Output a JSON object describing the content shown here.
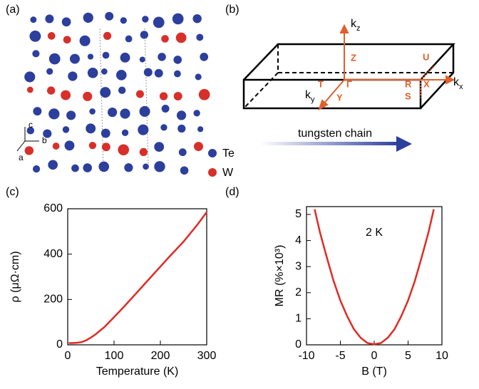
{
  "panel_labels": [
    "(a)",
    "(b)",
    "(c)",
    "(d)"
  ],
  "structure": {
    "axes": [
      "c",
      "b",
      "a"
    ],
    "legend": [
      {
        "name": "Te",
        "color": "#2c3f9c"
      },
      {
        "name": "W",
        "color": "#d7302a"
      }
    ]
  },
  "brillouin_zone": {
    "axes": [
      {
        "base": "k",
        "sub": "z"
      },
      {
        "base": "k",
        "sub": "y"
      },
      {
        "base": "k",
        "sub": "x"
      }
    ],
    "points": [
      "Z",
      "U",
      "T",
      "Γ",
      "Y",
      "R",
      "X",
      "S"
    ]
  },
  "arrow_label": "tungsten chain",
  "chart_data": [
    {
      "type": "line",
      "xlabel": "Temperature (K)",
      "ylabel": "ρ (μΩ·cm)",
      "color": "#e02b24",
      "x": [
        2,
        10,
        20,
        30,
        40,
        50,
        60,
        80,
        100,
        120,
        150,
        180,
        200,
        220,
        250,
        280,
        300
      ],
      "values": [
        8,
        8,
        9,
        12,
        20,
        32,
        46,
        80,
        122,
        165,
        232,
        300,
        345,
        390,
        455,
        530,
        585
      ],
      "xlim": [
        0,
        300
      ],
      "xticks": [
        0,
        100,
        200,
        300
      ],
      "ylim": [
        0,
        600
      ],
      "yticks": [
        0,
        200,
        400,
        600
      ]
    },
    {
      "type": "line",
      "xlabel": "B (T)",
      "ylabel": "MR (%×10³)",
      "annotation": "2 K",
      "color": "#e02b24",
      "x": [
        -8.8,
        -8,
        -7,
        -6,
        -5,
        -4,
        -3,
        -2,
        -1,
        0,
        1,
        2,
        3,
        4,
        5,
        6,
        7,
        8,
        8.8
      ],
      "values": [
        5.2,
        4.3,
        3.35,
        2.45,
        1.7,
        1.1,
        0.6,
        0.27,
        0.07,
        0.02,
        0.07,
        0.27,
        0.6,
        1.1,
        1.7,
        2.45,
        3.35,
        4.3,
        5.2
      ],
      "xlim": [
        -10,
        10
      ],
      "xticks": [
        -10,
        -5,
        0,
        5,
        10
      ],
      "ylim": [
        0,
        5.3
      ],
      "yticks": [
        0,
        1,
        2,
        3,
        4,
        5
      ]
    }
  ]
}
